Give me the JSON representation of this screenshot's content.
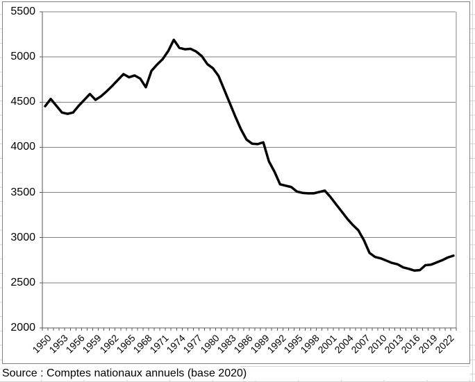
{
  "source_note": "Source : Comptes nationaux annuels (base 2020)",
  "theme": {
    "background": "#ffffff",
    "series_line": "#000000",
    "gridline": "#808080",
    "axis": "#595959",
    "chart_border": "#808080",
    "worksheet_gridline": "#d4d4d4",
    "text": "#000000"
  },
  "chart_data": {
    "type": "line",
    "title": "",
    "xlabel": "",
    "ylabel": "",
    "legend": "none",
    "grid": "horizontal",
    "ylim": [
      2000,
      5500
    ],
    "y_ticks": [
      2000,
      2500,
      3000,
      3500,
      4000,
      4500,
      5000,
      5500
    ],
    "x_tick_labels": [
      "1950",
      "1953",
      "1956",
      "1959",
      "1962",
      "1965",
      "1968",
      "1971",
      "1974",
      "1977",
      "1980",
      "1983",
      "1986",
      "1989",
      "1992",
      "1995",
      "1998",
      "2001",
      "2004",
      "2007",
      "2010",
      "2013",
      "2016",
      "2019",
      "2022"
    ],
    "x": [
      1950,
      1951,
      1952,
      1953,
      1954,
      1955,
      1956,
      1957,
      1958,
      1959,
      1960,
      1961,
      1962,
      1963,
      1964,
      1965,
      1966,
      1967,
      1968,
      1969,
      1970,
      1971,
      1972,
      1973,
      1974,
      1975,
      1976,
      1977,
      1978,
      1979,
      1980,
      1981,
      1982,
      1983,
      1984,
      1985,
      1986,
      1987,
      1988,
      1989,
      1990,
      1991,
      1992,
      1993,
      1994,
      1995,
      1996,
      1997,
      1998,
      1999,
      2000,
      2001,
      2002,
      2003,
      2004,
      2005,
      2006,
      2007,
      2008,
      2009,
      2010,
      2011,
      2012,
      2013,
      2014,
      2015,
      2016,
      2017,
      2018,
      2019,
      2020,
      2021,
      2022,
      2023
    ],
    "series": [
      {
        "name": "",
        "values": [
          4455,
          4535,
          4460,
          4385,
          4370,
          4385,
          4460,
          4525,
          4590,
          4525,
          4565,
          4620,
          4680,
          4745,
          4810,
          4775,
          4795,
          4760,
          4665,
          4845,
          4915,
          4975,
          5065,
          5190,
          5100,
          5085,
          5090,
          5060,
          5010,
          4920,
          4875,
          4790,
          4640,
          4490,
          4340,
          4200,
          4085,
          4040,
          4035,
          4055,
          3845,
          3730,
          3590,
          3575,
          3560,
          3510,
          3495,
          3490,
          3490,
          3505,
          3520,
          3450,
          3370,
          3290,
          3210,
          3140,
          3080,
          2970,
          2830,
          2785,
          2770,
          2745,
          2720,
          2705,
          2670,
          2655,
          2635,
          2640,
          2695,
          2700,
          2725,
          2750,
          2780,
          2800
        ]
      }
    ]
  }
}
